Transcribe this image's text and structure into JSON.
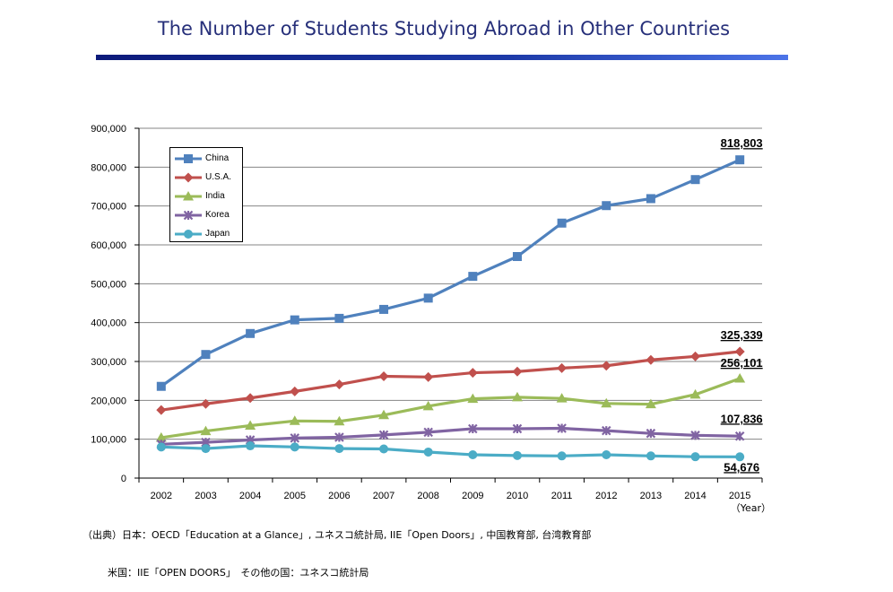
{
  "title": "The Number of Students Studying Abroad in Other Countries",
  "colors": {
    "China": "#4f81bd",
    "U.S.A.": "#c0504d",
    "India": "#9bbb59",
    "Korea": "#8064a2",
    "Japan": "#4bacc6",
    "grid": "#868686"
  },
  "chart_data": {
    "type": "line",
    "x": [
      "2002",
      "2003",
      "2004",
      "2005",
      "2006",
      "2007",
      "2008",
      "2009",
      "2010",
      "2011",
      "2012",
      "2013",
      "2014",
      "2015"
    ],
    "xlabel": "（Year）",
    "ylim": [
      0,
      900000
    ],
    "yticks": [
      0,
      100000,
      200000,
      300000,
      400000,
      500000,
      600000,
      700000,
      800000,
      900000
    ],
    "ytick_labels": [
      "0",
      "100,000",
      "200,000",
      "300,000",
      "400,000",
      "500,000",
      "600,000",
      "700,000",
      "800,000",
      "900,000"
    ],
    "grid": true,
    "legend_position": "top-left",
    "series": [
      {
        "name": "China",
        "marker": "square",
        "values": [
          236000,
          318000,
          372000,
          407000,
          411000,
          434000,
          463000,
          519000,
          570000,
          656000,
          701000,
          719000,
          768000,
          818803
        ]
      },
      {
        "name": "U.S.A.",
        "marker": "diamond",
        "values": [
          175000,
          191000,
          206000,
          223000,
          241000,
          262000,
          260000,
          271000,
          274000,
          283000,
          289000,
          304000,
          313000,
          325339
        ]
      },
      {
        "name": "India",
        "marker": "triangle",
        "values": [
          104000,
          121000,
          135000,
          147000,
          146000,
          162000,
          185000,
          204000,
          208000,
          205000,
          192000,
          190000,
          215000,
          256101
        ]
      },
      {
        "name": "Korea",
        "marker": "x",
        "values": [
          87000,
          92000,
          98000,
          103000,
          105000,
          111000,
          118000,
          127000,
          127000,
          128000,
          122000,
          115000,
          110000,
          107836
        ]
      },
      {
        "name": "Japan",
        "marker": "circle",
        "values": [
          80000,
          76000,
          83000,
          80000,
          76000,
          75000,
          67000,
          60000,
          58000,
          57000,
          60000,
          57000,
          55000,
          54676
        ]
      }
    ],
    "annotations": [
      {
        "series": "China",
        "label": "818,803"
      },
      {
        "series": "U.S.A.",
        "label": "325,339"
      },
      {
        "series": "India",
        "label": "256,101"
      },
      {
        "series": "Korea",
        "label": "107,836"
      },
      {
        "series": "Japan",
        "label": "54,676"
      }
    ]
  },
  "source": {
    "line1": "（出典）日本：OECD「Education at a Glance」, ユネスコ統計局, IIE「Open Doors」, 中国教育部, 台湾教育部",
    "line2": "米国：IIE「OPEN DOORS」　その他の国：ユネスコ統計局"
  }
}
